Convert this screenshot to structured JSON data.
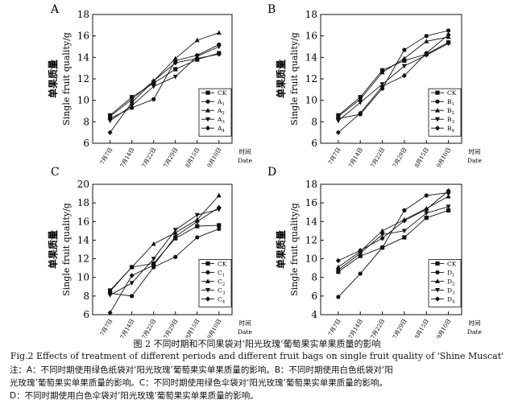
{
  "chart_data": [
    {
      "type": "line",
      "panel": "A",
      "ylabel_cn": "单果质量",
      "ylabel": "Single fruit quality/g",
      "xlabel_cn": "时间",
      "xlabel": "Date",
      "categories": [
        "7月7日",
        "7月14日",
        "7月22日",
        "7月29日",
        "8月15日",
        "9月10日"
      ],
      "ylim": [
        6,
        18
      ],
      "yticks": [
        6,
        8,
        10,
        12,
        14,
        16,
        18
      ],
      "legend_position": "right",
      "series": [
        {
          "name": "CK",
          "sub": "",
          "values": [
            8.6,
            10.3,
            11.6,
            12.9,
            13.8,
            14.4
          ]
        },
        {
          "name": "A",
          "sub": "1",
          "values": [
            8.3,
            9.3,
            10.1,
            13.7,
            14.2,
            15.2
          ]
        },
        {
          "name": "A",
          "sub": "2",
          "values": [
            8.5,
            10.1,
            11.8,
            13.9,
            15.6,
            16.3
          ]
        },
        {
          "name": "A",
          "sub": "3",
          "values": [
            8.1,
            9.5,
            11.3,
            12.2,
            14.1,
            15.0
          ]
        },
        {
          "name": "A",
          "sub": "4",
          "values": [
            7.0,
            9.8,
            11.8,
            13.5,
            13.9,
            14.3
          ]
        }
      ]
    },
    {
      "type": "line",
      "panel": "B",
      "ylabel_cn": "单果质量",
      "ylabel": "Single fruit quality/g",
      "xlabel_cn": "时间",
      "xlabel": "Date",
      "categories": [
        "7月7日",
        "7月14日",
        "7月22日",
        "7月29日",
        "8月15日",
        "9月10日"
      ],
      "ylim": [
        6,
        18
      ],
      "yticks": [
        6,
        8,
        10,
        12,
        14,
        16,
        18
      ],
      "legend_position": "right",
      "series": [
        {
          "name": "CK",
          "sub": "",
          "values": [
            8.6,
            10.3,
            12.8,
            13.7,
            14.3,
            15.4
          ]
        },
        {
          "name": "B",
          "sub": "1",
          "values": [
            8.3,
            8.7,
            11.1,
            14.7,
            16.0,
            16.5
          ]
        },
        {
          "name": "B",
          "sub": "2",
          "values": [
            8.5,
            10.1,
            12.6,
            13.9,
            15.5,
            15.9
          ]
        },
        {
          "name": "B",
          "sub": "3",
          "values": [
            8.1,
            9.8,
            11.5,
            13.2,
            14.2,
            15.3
          ]
        },
        {
          "name": "B",
          "sub": "4",
          "values": [
            7.0,
            8.8,
            11.3,
            12.3,
            14.4,
            16.1
          ]
        }
      ]
    },
    {
      "type": "line",
      "panel": "C",
      "ylabel_cn": "单果质量",
      "ylabel": "Single fruit quality/g",
      "xlabel_cn": "时间",
      "xlabel": "Date",
      "categories": [
        "7月7日",
        "7月14日",
        "7月22日",
        "7月29日",
        "8月15日",
        "9月10日"
      ],
      "ylim": [
        6,
        20
      ],
      "yticks": [
        6,
        8,
        10,
        12,
        14,
        16,
        18,
        20
      ],
      "legend_position": "right",
      "series": [
        {
          "name": "CK",
          "sub": "",
          "values": [
            8.6,
            11.1,
            11.5,
            14.2,
            15.5,
            15.6
          ]
        },
        {
          "name": "C",
          "sub": "1",
          "values": [
            8.3,
            8.0,
            11.1,
            12.2,
            14.3,
            15.2
          ]
        },
        {
          "name": "C",
          "sub": "2",
          "values": [
            8.5,
            11.1,
            13.6,
            14.8,
            16.2,
            18.8
          ]
        },
        {
          "name": "C",
          "sub": "3",
          "values": [
            8.1,
            9.4,
            12.0,
            15.1,
            16.7,
            17.3
          ]
        },
        {
          "name": "C",
          "sub": "4",
          "values": [
            6.2,
            10.2,
            11.3,
            14.4,
            16.0,
            17.5
          ]
        }
      ]
    },
    {
      "type": "line",
      "panel": "D",
      "ylabel_cn": "单果质量",
      "ylabel": "Single fruit quality/g",
      "xlabel_cn": "时间",
      "xlabel": "Date",
      "categories": [
        "7月7日",
        "7月14日",
        "7月22日",
        "7月29日",
        "8月15日",
        "9月10日"
      ],
      "ylim": [
        4,
        18
      ],
      "yticks": [
        4,
        6,
        8,
        10,
        12,
        14,
        16,
        18
      ],
      "legend_position": "right",
      "series": [
        {
          "name": "CK",
          "sub": "",
          "values": [
            8.6,
            10.3,
            11.2,
            12.3,
            14.4,
            15.2
          ]
        },
        {
          "name": "D",
          "sub": "1",
          "values": [
            5.9,
            8.4,
            11.2,
            15.2,
            16.8,
            17.1
          ]
        },
        {
          "name": "D",
          "sub": "2",
          "values": [
            9.1,
            10.8,
            13.0,
            14.2,
            15.4,
            16.7
          ]
        },
        {
          "name": "D",
          "sub": "3",
          "values": [
            8.8,
            10.6,
            12.6,
            13.0,
            14.9,
            15.6
          ]
        },
        {
          "name": "D",
          "sub": "4",
          "values": [
            9.8,
            10.9,
            12.2,
            14.1,
            15.3,
            17.3
          ]
        }
      ]
    }
  ],
  "captions": {
    "zh": "图 2  不同时期和不同果袋对‘阳光玫瑰’葡萄果实单果质量的影响",
    "en": "Fig.2  Effects of treatment of different periods and different fruit bags on single fruit quality of 'Shine Muscat'",
    "note1": "注：A：不同时期使用绿色纸袋对‘阳光玫瑰’葡萄果实单果质量的影响。B：不同时期使用白色纸袋对‘阳",
    "note2": "光玫瑰’葡萄果实单果质量的影响。C：不同时期使用绿色伞袋对‘阳光玫瑰’葡萄果实单果质量的影响。",
    "note3": "D：不同时期使用白色伞袋对‘阳光玫瑰’葡萄果实单果质量的影响。"
  }
}
